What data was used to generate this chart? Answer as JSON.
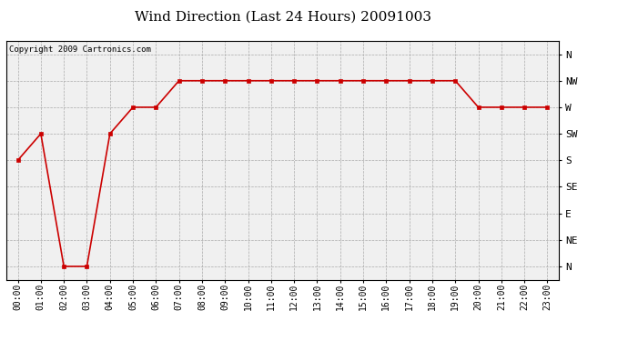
{
  "title": "Wind Direction (Last 24 Hours) 20091003",
  "copyright_text": "Copyright 2009 Cartronics.com",
  "x_labels": [
    "00:00",
    "01:00",
    "02:00",
    "03:00",
    "04:00",
    "05:00",
    "06:00",
    "07:00",
    "08:00",
    "09:00",
    "10:00",
    "11:00",
    "12:00",
    "13:00",
    "14:00",
    "15:00",
    "16:00",
    "17:00",
    "18:00",
    "19:00",
    "20:00",
    "21:00",
    "22:00",
    "23:00"
  ],
  "y_labels": [
    "N",
    "NE",
    "E",
    "SE",
    "S",
    "SW",
    "W",
    "NW",
    "N"
  ],
  "y_values": [
    0,
    45,
    90,
    135,
    180,
    225,
    270,
    315,
    360
  ],
  "wind_data": [
    {
      "hour": 0,
      "direction": 180
    },
    {
      "hour": 1,
      "direction": 225
    },
    {
      "hour": 2,
      "direction": 0
    },
    {
      "hour": 3,
      "direction": 0
    },
    {
      "hour": 4,
      "direction": 225
    },
    {
      "hour": 5,
      "direction": 270
    },
    {
      "hour": 6,
      "direction": 270
    },
    {
      "hour": 7,
      "direction": 315
    },
    {
      "hour": 8,
      "direction": 315
    },
    {
      "hour": 9,
      "direction": 315
    },
    {
      "hour": 10,
      "direction": 315
    },
    {
      "hour": 11,
      "direction": 315
    },
    {
      "hour": 12,
      "direction": 315
    },
    {
      "hour": 13,
      "direction": 315
    },
    {
      "hour": 14,
      "direction": 315
    },
    {
      "hour": 15,
      "direction": 315
    },
    {
      "hour": 16,
      "direction": 315
    },
    {
      "hour": 17,
      "direction": 315
    },
    {
      "hour": 18,
      "direction": 315
    },
    {
      "hour": 19,
      "direction": 315
    },
    {
      "hour": 20,
      "direction": 270
    },
    {
      "hour": 21,
      "direction": 270
    },
    {
      "hour": 22,
      "direction": 270
    },
    {
      "hour": 23,
      "direction": 270
    }
  ],
  "line_color": "#cc0000",
  "marker": "s",
  "marker_size": 3,
  "background_color": "#ffffff",
  "plot_bg_color": "#f0f0f0",
  "grid_color": "#aaaaaa",
  "title_fontsize": 11,
  "copyright_fontsize": 6.5,
  "tick_fontsize": 7,
  "ylabel_fontsize": 8
}
